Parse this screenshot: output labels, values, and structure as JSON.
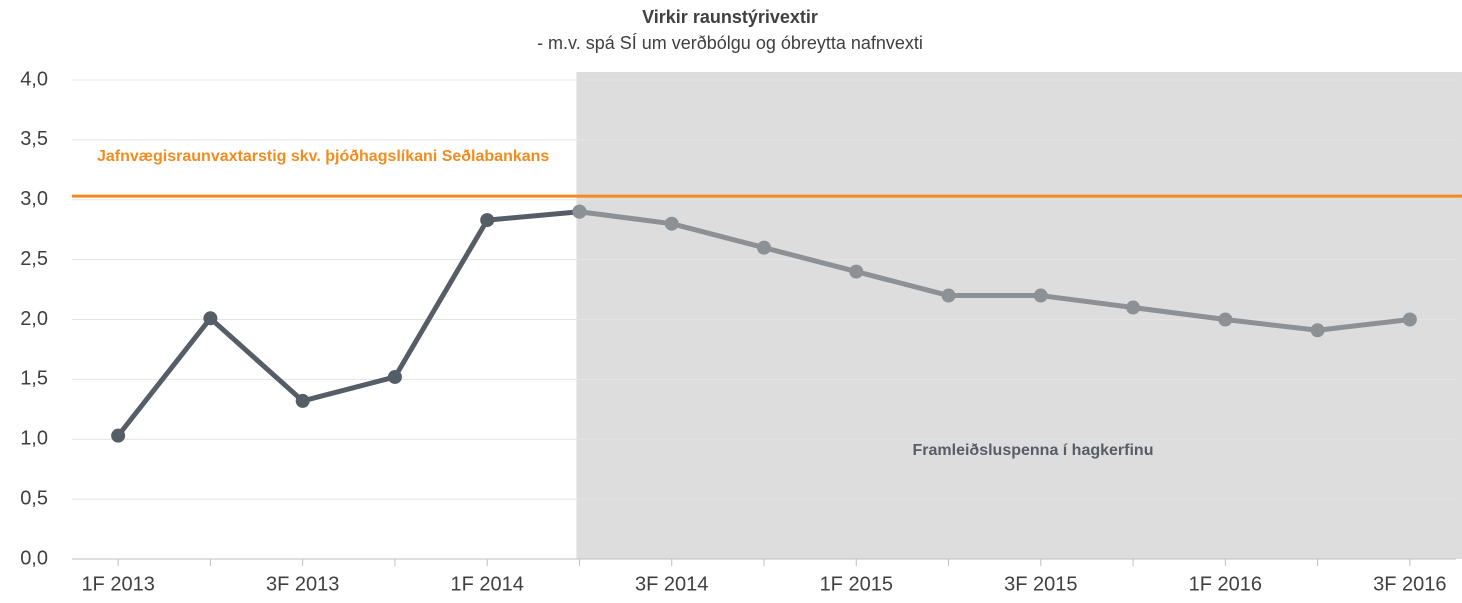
{
  "chart_data": {
    "type": "line",
    "title": "Virkir raunstýrivextir",
    "subtitle": "- m.v. spá SÍ um verðbólgu og óbreytta nafnvexti",
    "categories": [
      "1F 2013",
      null,
      "3F 2013",
      null,
      "1F 2014",
      null,
      "3F 2014",
      null,
      "1F 2015",
      null,
      "3F 2015",
      null,
      "1F 2016",
      null,
      "3F 2016"
    ],
    "series": [
      {
        "color": "#555d66",
        "values": [
          1.03,
          2.01,
          1.32,
          1.52,
          2.83,
          2.9,
          null,
          null,
          null,
          null,
          null,
          null,
          null,
          null,
          null
        ]
      },
      {
        "color": "#8c9196",
        "values": [
          null,
          null,
          null,
          null,
          null,
          2.9,
          2.8,
          2.6,
          2.4,
          2.2,
          2.2,
          2.1,
          2.0,
          1.91,
          2.0
        ]
      }
    ],
    "ylim": [
      0,
      4
    ],
    "yticks": [
      {
        "value": 0,
        "label": "0,0"
      },
      {
        "value": 0.5,
        "label": "0,5"
      },
      {
        "value": 1,
        "label": "1,0"
      },
      {
        "value": 1.5,
        "label": "1,5"
      },
      {
        "value": 2,
        "label": "2,0"
      },
      {
        "value": 2.5,
        "label": "2,5"
      },
      {
        "value": 3,
        "label": "3,0"
      },
      {
        "value": 3.5,
        "label": "3,5"
      },
      {
        "value": 4,
        "label": "4,0"
      }
    ],
    "grid": true,
    "reference_line": {
      "value": 3.03,
      "label": "Jafnvægisraunvaxtarstig skv. þjóðhagslíkani Seðlabankans",
      "color": "#f28c1e"
    },
    "shaded_region": {
      "start": 5,
      "label": "Framleiðsluspenna í hagkerfinu",
      "color": "#dddddd"
    }
  }
}
